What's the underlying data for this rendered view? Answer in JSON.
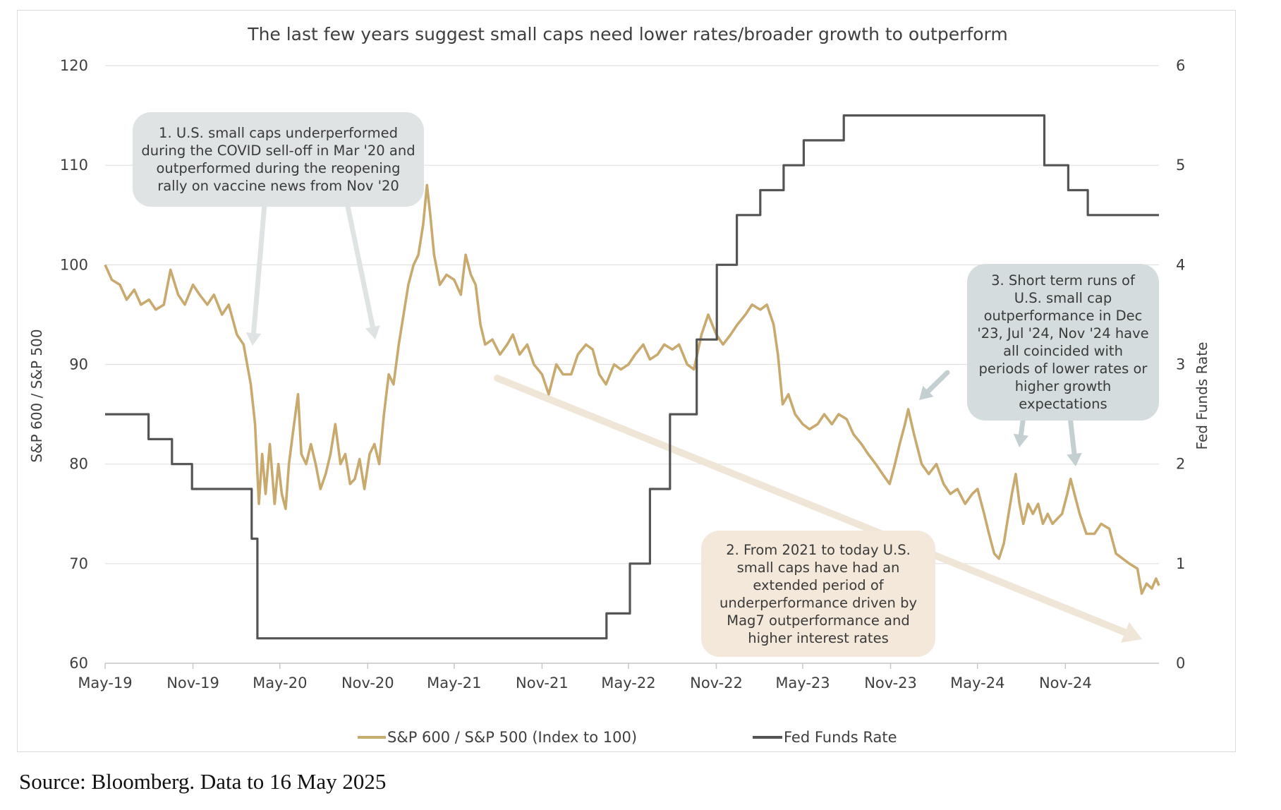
{
  "chart_data": {
    "type": "line",
    "title": "The last few years suggest small caps need lower rates/broader growth to outperform",
    "ylabel": "S&P 600 / S&P 500",
    "y2label": "Fed Funds Rate",
    "ylim": [
      60,
      120
    ],
    "y2lim": [
      0,
      6
    ],
    "xlim": [
      "2019-05-01",
      "2025-05-16"
    ],
    "yticks": [
      "60",
      "70",
      "80",
      "90",
      "100",
      "110",
      "120"
    ],
    "y2ticks": [
      "0",
      "1",
      "2",
      "3",
      "4",
      "5",
      "6"
    ],
    "xticks": [
      {
        "date": "2019-05-01",
        "label": "May-19"
      },
      {
        "date": "2019-11-01",
        "label": "Nov-19"
      },
      {
        "date": "2020-05-01",
        "label": "May-20"
      },
      {
        "date": "2020-11-01",
        "label": "Nov-20"
      },
      {
        "date": "2021-05-01",
        "label": "May-21"
      },
      {
        "date": "2021-11-01",
        "label": "Nov-21"
      },
      {
        "date": "2022-05-01",
        "label": "May-22"
      },
      {
        "date": "2022-11-01",
        "label": "Nov-22"
      },
      {
        "date": "2023-05-01",
        "label": "May-23"
      },
      {
        "date": "2023-11-01",
        "label": "Nov-23"
      },
      {
        "date": "2024-05-01",
        "label": "May-24"
      },
      {
        "date": "2024-11-01",
        "label": "Nov-24"
      }
    ],
    "grid": true,
    "legend_position": "bottom",
    "series": [
      {
        "name": "S&P 600 / S&P 500 (Index to 100)",
        "axis": "left",
        "color": "#c9aa6e",
        "points": [
          [
            "2019-05-01",
            100
          ],
          [
            "2019-05-15",
            98.5
          ],
          [
            "2019-06-01",
            98
          ],
          [
            "2019-06-15",
            96.5
          ],
          [
            "2019-07-01",
            97.5
          ],
          [
            "2019-07-15",
            96
          ],
          [
            "2019-08-01",
            96.5
          ],
          [
            "2019-08-15",
            95.5
          ],
          [
            "2019-09-01",
            96
          ],
          [
            "2019-09-15",
            99.5
          ],
          [
            "2019-10-01",
            97
          ],
          [
            "2019-10-15",
            96
          ],
          [
            "2019-11-01",
            98
          ],
          [
            "2019-11-15",
            97
          ],
          [
            "2019-12-01",
            96
          ],
          [
            "2019-12-15",
            97
          ],
          [
            "2020-01-01",
            95
          ],
          [
            "2020-01-15",
            96
          ],
          [
            "2020-02-01",
            93
          ],
          [
            "2020-02-15",
            92
          ],
          [
            "2020-03-01",
            88
          ],
          [
            "2020-03-10",
            84
          ],
          [
            "2020-03-18",
            76
          ],
          [
            "2020-03-25",
            81
          ],
          [
            "2020-04-01",
            77
          ],
          [
            "2020-04-10",
            82
          ],
          [
            "2020-04-20",
            76
          ],
          [
            "2020-04-28",
            80
          ],
          [
            "2020-05-05",
            77
          ],
          [
            "2020-05-13",
            75.5
          ],
          [
            "2020-05-20",
            80
          ],
          [
            "2020-05-28",
            83
          ],
          [
            "2020-06-08",
            87
          ],
          [
            "2020-06-15",
            81
          ],
          [
            "2020-06-25",
            80
          ],
          [
            "2020-07-05",
            82
          ],
          [
            "2020-07-15",
            80
          ],
          [
            "2020-07-25",
            77.5
          ],
          [
            "2020-08-05",
            79
          ],
          [
            "2020-08-15",
            81
          ],
          [
            "2020-08-25",
            84
          ],
          [
            "2020-09-05",
            80
          ],
          [
            "2020-09-15",
            81
          ],
          [
            "2020-09-25",
            78
          ],
          [
            "2020-10-05",
            78.5
          ],
          [
            "2020-10-15",
            80.5
          ],
          [
            "2020-10-25",
            77.5
          ],
          [
            "2020-11-05",
            81
          ],
          [
            "2020-11-15",
            82
          ],
          [
            "2020-11-25",
            80
          ],
          [
            "2020-12-05",
            85
          ],
          [
            "2020-12-15",
            89
          ],
          [
            "2020-12-25",
            88
          ],
          [
            "2021-01-05",
            92
          ],
          [
            "2021-01-15",
            95
          ],
          [
            "2021-01-25",
            98
          ],
          [
            "2021-02-05",
            100
          ],
          [
            "2021-02-15",
            101
          ],
          [
            "2021-02-25",
            104
          ],
          [
            "2021-03-05",
            108
          ],
          [
            "2021-03-12",
            105
          ],
          [
            "2021-03-20",
            101
          ],
          [
            "2021-04-01",
            98
          ],
          [
            "2021-04-15",
            99
          ],
          [
            "2021-05-01",
            98.5
          ],
          [
            "2021-05-15",
            97
          ],
          [
            "2021-05-25",
            101
          ],
          [
            "2021-06-05",
            99
          ],
          [
            "2021-06-15",
            98
          ],
          [
            "2021-06-25",
            94
          ],
          [
            "2021-07-05",
            92
          ],
          [
            "2021-07-20",
            92.5
          ],
          [
            "2021-08-05",
            91
          ],
          [
            "2021-08-20",
            92
          ],
          [
            "2021-09-01",
            93
          ],
          [
            "2021-09-15",
            91
          ],
          [
            "2021-10-01",
            92
          ],
          [
            "2021-10-15",
            90
          ],
          [
            "2021-11-01",
            89
          ],
          [
            "2021-11-15",
            87
          ],
          [
            "2021-12-01",
            90
          ],
          [
            "2021-12-15",
            89
          ],
          [
            "2022-01-01",
            89
          ],
          [
            "2022-01-15",
            91
          ],
          [
            "2022-02-01",
            92
          ],
          [
            "2022-02-15",
            91.5
          ],
          [
            "2022-03-01",
            89
          ],
          [
            "2022-03-15",
            88
          ],
          [
            "2022-04-01",
            90
          ],
          [
            "2022-04-15",
            89.5
          ],
          [
            "2022-05-01",
            90
          ],
          [
            "2022-05-15",
            91
          ],
          [
            "2022-06-01",
            92
          ],
          [
            "2022-06-15",
            90.5
          ],
          [
            "2022-07-01",
            91
          ],
          [
            "2022-07-15",
            92
          ],
          [
            "2022-08-01",
            91.5
          ],
          [
            "2022-08-15",
            92
          ],
          [
            "2022-09-01",
            90
          ],
          [
            "2022-09-15",
            89.5
          ],
          [
            "2022-10-01",
            93
          ],
          [
            "2022-10-15",
            95
          ],
          [
            "2022-11-01",
            93
          ],
          [
            "2022-11-15",
            92
          ],
          [
            "2022-12-01",
            93
          ],
          [
            "2022-12-15",
            94
          ],
          [
            "2023-01-01",
            95
          ],
          [
            "2023-01-15",
            96
          ],
          [
            "2023-02-01",
            95.5
          ],
          [
            "2023-02-15",
            96
          ],
          [
            "2023-03-01",
            94
          ],
          [
            "2023-03-10",
            91
          ],
          [
            "2023-03-20",
            86
          ],
          [
            "2023-04-01",
            87
          ],
          [
            "2023-04-15",
            85
          ],
          [
            "2023-05-01",
            84
          ],
          [
            "2023-05-15",
            83.5
          ],
          [
            "2023-06-01",
            84
          ],
          [
            "2023-06-15",
            85
          ],
          [
            "2023-07-01",
            84
          ],
          [
            "2023-07-15",
            85
          ],
          [
            "2023-08-01",
            84.5
          ],
          [
            "2023-08-15",
            83
          ],
          [
            "2023-09-01",
            82
          ],
          [
            "2023-09-15",
            81
          ],
          [
            "2023-10-01",
            80
          ],
          [
            "2023-10-15",
            79
          ],
          [
            "2023-10-30",
            78
          ],
          [
            "2023-11-10",
            80
          ],
          [
            "2023-11-20",
            82
          ],
          [
            "2023-12-01",
            84
          ],
          [
            "2023-12-08",
            85.5
          ],
          [
            "2023-12-20",
            83
          ],
          [
            "2024-01-05",
            80
          ],
          [
            "2024-01-20",
            79
          ],
          [
            "2024-02-05",
            80
          ],
          [
            "2024-02-20",
            78
          ],
          [
            "2024-03-05",
            77
          ],
          [
            "2024-03-20",
            77.5
          ],
          [
            "2024-04-05",
            76
          ],
          [
            "2024-04-20",
            77
          ],
          [
            "2024-05-01",
            77.5
          ],
          [
            "2024-05-15",
            75
          ],
          [
            "2024-05-25",
            73
          ],
          [
            "2024-06-05",
            71
          ],
          [
            "2024-06-15",
            70.5
          ],
          [
            "2024-06-25",
            72
          ],
          [
            "2024-07-05",
            75
          ],
          [
            "2024-07-12",
            77
          ],
          [
            "2024-07-20",
            79
          ],
          [
            "2024-07-28",
            76
          ],
          [
            "2024-08-05",
            74
          ],
          [
            "2024-08-15",
            76
          ],
          [
            "2024-08-25",
            75
          ],
          [
            "2024-09-05",
            76
          ],
          [
            "2024-09-15",
            74
          ],
          [
            "2024-09-25",
            75
          ],
          [
            "2024-10-05",
            74
          ],
          [
            "2024-10-15",
            74.5
          ],
          [
            "2024-10-25",
            75
          ],
          [
            "2024-11-05",
            77
          ],
          [
            "2024-11-12",
            78.5
          ],
          [
            "2024-11-20",
            77
          ],
          [
            "2024-12-01",
            75
          ],
          [
            "2024-12-15",
            73
          ],
          [
            "2025-01-01",
            73
          ],
          [
            "2025-01-15",
            74
          ],
          [
            "2025-02-01",
            73.5
          ],
          [
            "2025-02-15",
            71
          ],
          [
            "2025-03-01",
            70.5
          ],
          [
            "2025-03-15",
            70
          ],
          [
            "2025-04-01",
            69.5
          ],
          [
            "2025-04-10",
            67
          ],
          [
            "2025-04-20",
            68
          ],
          [
            "2025-05-01",
            67.5
          ],
          [
            "2025-05-10",
            68.5
          ],
          [
            "2025-05-16",
            67.8
          ]
        ]
      },
      {
        "name": "Fed Funds Rate",
        "axis": "right",
        "color": "#545454",
        "points": [
          [
            "2019-05-01",
            2.5
          ],
          [
            "2019-07-31",
            2.5
          ],
          [
            "2019-07-31",
            2.25
          ],
          [
            "2019-09-18",
            2.25
          ],
          [
            "2019-09-18",
            2.0
          ],
          [
            "2019-10-30",
            2.0
          ],
          [
            "2019-10-30",
            1.75
          ],
          [
            "2020-03-03",
            1.75
          ],
          [
            "2020-03-03",
            1.25
          ],
          [
            "2020-03-15",
            1.25
          ],
          [
            "2020-03-15",
            0.25
          ],
          [
            "2022-03-16",
            0.25
          ],
          [
            "2022-03-16",
            0.5
          ],
          [
            "2022-05-04",
            0.5
          ],
          [
            "2022-05-04",
            1.0
          ],
          [
            "2022-06-15",
            1.0
          ],
          [
            "2022-06-15",
            1.75
          ],
          [
            "2022-07-27",
            1.75
          ],
          [
            "2022-07-27",
            2.5
          ],
          [
            "2022-09-21",
            2.5
          ],
          [
            "2022-09-21",
            3.25
          ],
          [
            "2022-11-02",
            3.25
          ],
          [
            "2022-11-02",
            4.0
          ],
          [
            "2022-12-14",
            4.0
          ],
          [
            "2022-12-14",
            4.5
          ],
          [
            "2023-02-01",
            4.5
          ],
          [
            "2023-02-01",
            4.75
          ],
          [
            "2023-03-22",
            4.75
          ],
          [
            "2023-03-22",
            5.0
          ],
          [
            "2023-05-03",
            5.0
          ],
          [
            "2023-05-03",
            5.25
          ],
          [
            "2023-07-26",
            5.25
          ],
          [
            "2023-07-26",
            5.5
          ],
          [
            "2024-09-18",
            5.5
          ],
          [
            "2024-09-18",
            5.0
          ],
          [
            "2024-11-07",
            5.0
          ],
          [
            "2024-11-07",
            4.75
          ],
          [
            "2024-12-18",
            4.75
          ],
          [
            "2024-12-18",
            4.5
          ],
          [
            "2025-05-16",
            4.5
          ]
        ]
      }
    ],
    "annotations": [
      {
        "text": "1. U.S. small caps underperformed during the COVID sell-off in Mar '20 and outperformed during the reopening rally on vaccine news from Nov '20"
      },
      {
        "text": "2. From 2021 to today U.S. small caps have had an extended period of underperformance driven by Mag7 outperformance and higher interest rates"
      },
      {
        "text": "3. Short term runs of U.S. small cap outperformance in Dec '23, Jul '24, Nov '24 have all coincided with periods of lower rates or higher growth expectations"
      }
    ]
  },
  "colors": {
    "ratio_line": "#c9aa6e",
    "fed_line": "#545454",
    "grid": "#e0e0e0",
    "callout_1_bg": "#dfe3e3",
    "callout_2_bg": "#f3e8d9",
    "callout_3_bg": "#d4dcdd",
    "trend_arrow": "#f0e6d8",
    "pointer_arrow_1": "#dfe3e3",
    "pointer_arrow_3": "#c3cfd1"
  },
  "source": "Source: Bloomberg. Data to 16 May 2025"
}
